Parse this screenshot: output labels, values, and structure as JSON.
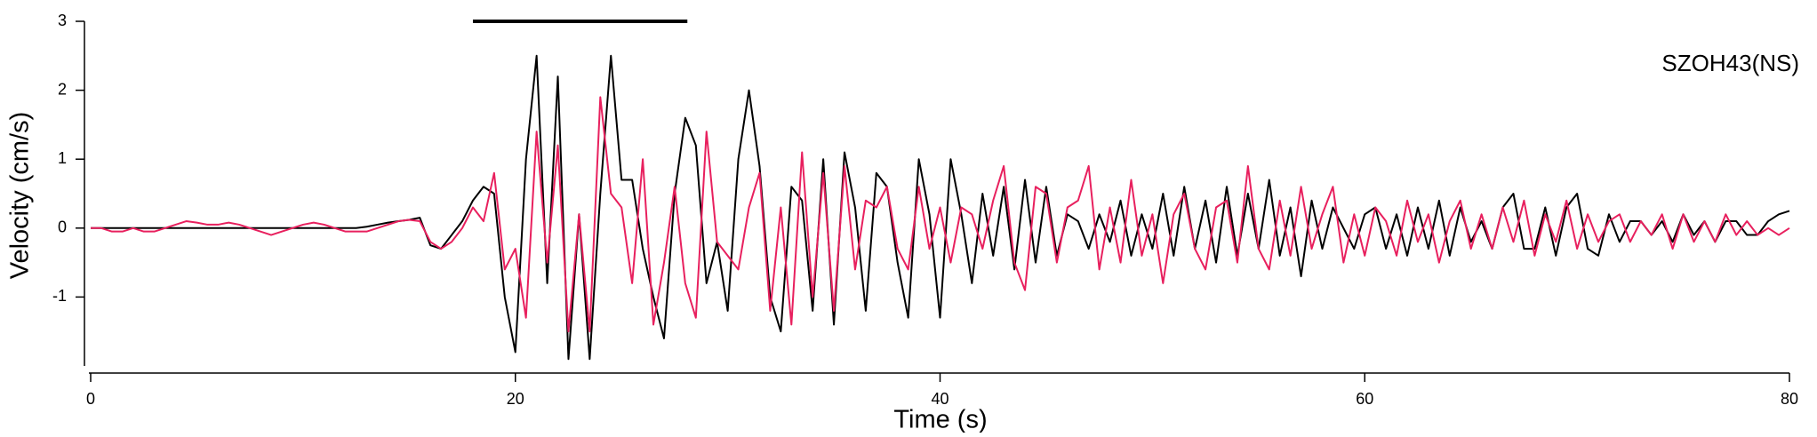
{
  "chart_data": {
    "type": "line",
    "xlabel": "Time (s)",
    "ylabel": "Velocity (cm/s)",
    "annotation": "SZOH43(NS)",
    "window": {
      "x": [
        18,
        28.1
      ],
      "y": 3
    },
    "xlim": [
      0,
      80
    ],
    "xticks": [
      0,
      20,
      40,
      60,
      80
    ],
    "ylim": [
      -2,
      3
    ],
    "yticks": [
      -1,
      0,
      1,
      2,
      3
    ],
    "x": [
      0,
      0.5,
      1,
      1.5,
      2,
      2.5,
      3,
      3.5,
      4,
      4.5,
      5,
      5.5,
      6,
      6.5,
      7,
      7.5,
      8,
      8.5,
      9,
      9.5,
      10,
      10.5,
      11,
      11.5,
      12,
      12.5,
      13,
      13.5,
      14,
      14.5,
      15,
      15.5,
      16,
      16.5,
      17,
      17.5,
      18,
      18.5,
      19,
      19.5,
      20,
      20.5,
      21,
      21.5,
      22,
      22.5,
      23,
      23.5,
      24,
      24.5,
      25,
      25.5,
      26,
      26.5,
      27,
      27.5,
      28,
      28.5,
      29,
      29.5,
      30,
      30.5,
      31,
      31.5,
      32,
      32.5,
      33,
      33.5,
      34,
      34.5,
      35,
      35.5,
      36,
      36.5,
      37,
      37.5,
      38,
      38.5,
      39,
      39.5,
      40,
      40.5,
      41,
      41.5,
      42,
      42.5,
      43,
      43.5,
      44,
      44.5,
      45,
      45.5,
      46,
      46.5,
      47,
      47.5,
      48,
      48.5,
      49,
      49.5,
      50,
      50.5,
      51,
      51.5,
      52,
      52.5,
      53,
      53.5,
      54,
      54.5,
      55,
      55.5,
      56,
      56.5,
      57,
      57.5,
      58,
      58.5,
      59,
      59.5,
      60,
      60.5,
      61,
      61.5,
      62,
      62.5,
      63,
      63.5,
      64,
      64.5,
      65,
      65.5,
      66,
      66.5,
      67,
      67.5,
      68,
      68.5,
      69,
      69.5,
      70,
      70.5,
      71,
      71.5,
      72,
      72.5,
      73,
      73.5,
      74,
      74.5,
      75,
      75.5,
      76,
      76.5,
      77,
      77.5,
      78,
      78.5,
      79,
      79.5,
      80
    ],
    "series": [
      {
        "color": "#000000",
        "values": [
          0,
          0,
          0,
          0,
          0,
          0,
          0,
          0,
          0,
          0,
          0,
          0,
          0,
          0,
          0,
          0,
          0,
          0,
          0,
          0,
          0,
          0,
          0,
          0,
          0,
          0,
          0.02,
          0.05,
          0.08,
          0.1,
          0.12,
          0.15,
          -0.25,
          -0.3,
          -0.1,
          0.1,
          0.4,
          0.6,
          0.5,
          -1.0,
          -1.8,
          1.0,
          2.5,
          -0.8,
          2.2,
          -1.9,
          0.2,
          -1.9,
          0.5,
          2.5,
          0.7,
          0.7,
          -0.3,
          -1.0,
          -1.6,
          0.5,
          1.6,
          1.2,
          -0.8,
          -0.2,
          -1.2,
          1.0,
          2.0,
          0.9,
          -1.0,
          -1.5,
          0.6,
          0.4,
          -1.2,
          1.0,
          -1.4,
          1.1,
          0.3,
          -1.2,
          0.8,
          0.6,
          -0.5,
          -1.3,
          1.0,
          0.2,
          -1.3,
          1.0,
          0.2,
          -0.8,
          0.5,
          -0.4,
          0.6,
          -0.6,
          0.7,
          -0.5,
          0.6,
          -0.4,
          0.2,
          0.1,
          -0.3,
          0.2,
          -0.2,
          0.4,
          -0.4,
          0.2,
          -0.3,
          0.5,
          -0.4,
          0.6,
          -0.3,
          0.4,
          -0.5,
          0.6,
          -0.4,
          0.5,
          -0.3,
          0.7,
          -0.4,
          0.3,
          -0.7,
          0.4,
          -0.3,
          0.3,
          0.0,
          -0.3,
          0.2,
          0.3,
          -0.3,
          0.2,
          -0.4,
          0.3,
          -0.3,
          0.4,
          -0.4,
          0.3,
          -0.2,
          0.1,
          -0.3,
          0.3,
          0.5,
          -0.3,
          -0.3,
          0.3,
          -0.4,
          0.3,
          0.5,
          -0.3,
          -0.4,
          0.2,
          -0.2,
          0.1,
          0.1,
          -0.1,
          0.1,
          -0.2,
          0.2,
          -0.1,
          0.1,
          -0.2,
          0.1,
          0.1,
          -0.1,
          -0.1,
          0.1,
          0.2,
          0.25
        ]
      },
      {
        "color": "#e8205e",
        "values": [
          0,
          0,
          -0.05,
          -0.05,
          0,
          -0.05,
          -0.05,
          0,
          0.05,
          0.1,
          0.08,
          0.05,
          0.05,
          0.08,
          0.05,
          0,
          -0.05,
          -0.1,
          -0.05,
          0,
          0.05,
          0.08,
          0.05,
          0,
          -0.05,
          -0.05,
          -0.05,
          0,
          0.05,
          0.1,
          0.12,
          0.1,
          -0.2,
          -0.3,
          -0.2,
          0,
          0.3,
          0.1,
          0.8,
          -0.6,
          -0.3,
          -1.3,
          1.4,
          -0.5,
          1.2,
          -1.5,
          0.2,
          -1.5,
          1.9,
          0.5,
          0.3,
          -0.8,
          1.0,
          -1.4,
          -0.5,
          0.6,
          -0.8,
          -1.3,
          1.4,
          -0.2,
          -0.4,
          -0.6,
          0.3,
          0.8,
          -1.2,
          0.3,
          -1.4,
          1.1,
          -1.0,
          0.8,
          -1.2,
          0.9,
          -0.6,
          0.4,
          0.3,
          0.6,
          -0.3,
          -0.6,
          0.6,
          -0.3,
          0.3,
          -0.5,
          0.3,
          0.2,
          -0.3,
          0.4,
          0.9,
          -0.5,
          -0.9,
          0.6,
          0.5,
          -0.5,
          0.3,
          0.4,
          0.9,
          -0.6,
          0.3,
          -0.5,
          0.7,
          -0.4,
          0.2,
          -0.8,
          0.2,
          0.5,
          -0.3,
          -0.6,
          0.3,
          0.4,
          -0.5,
          0.9,
          -0.3,
          -0.6,
          0.4,
          -0.4,
          0.6,
          -0.3,
          0.2,
          0.6,
          -0.5,
          0.2,
          -0.4,
          0.3,
          0.1,
          -0.4,
          0.4,
          -0.2,
          0.2,
          -0.5,
          0.1,
          0.4,
          -0.3,
          0.2,
          -0.3,
          0.3,
          -0.2,
          0.4,
          -0.4,
          0.2,
          -0.2,
          0.4,
          -0.3,
          0.2,
          -0.2,
          0.1,
          0.2,
          -0.2,
          0.1,
          -0.1,
          0.2,
          -0.3,
          0.2,
          -0.2,
          0.1,
          -0.2,
          0.2,
          -0.1,
          0.1,
          -0.1,
          0,
          -0.1,
          0
        ]
      }
    ]
  }
}
